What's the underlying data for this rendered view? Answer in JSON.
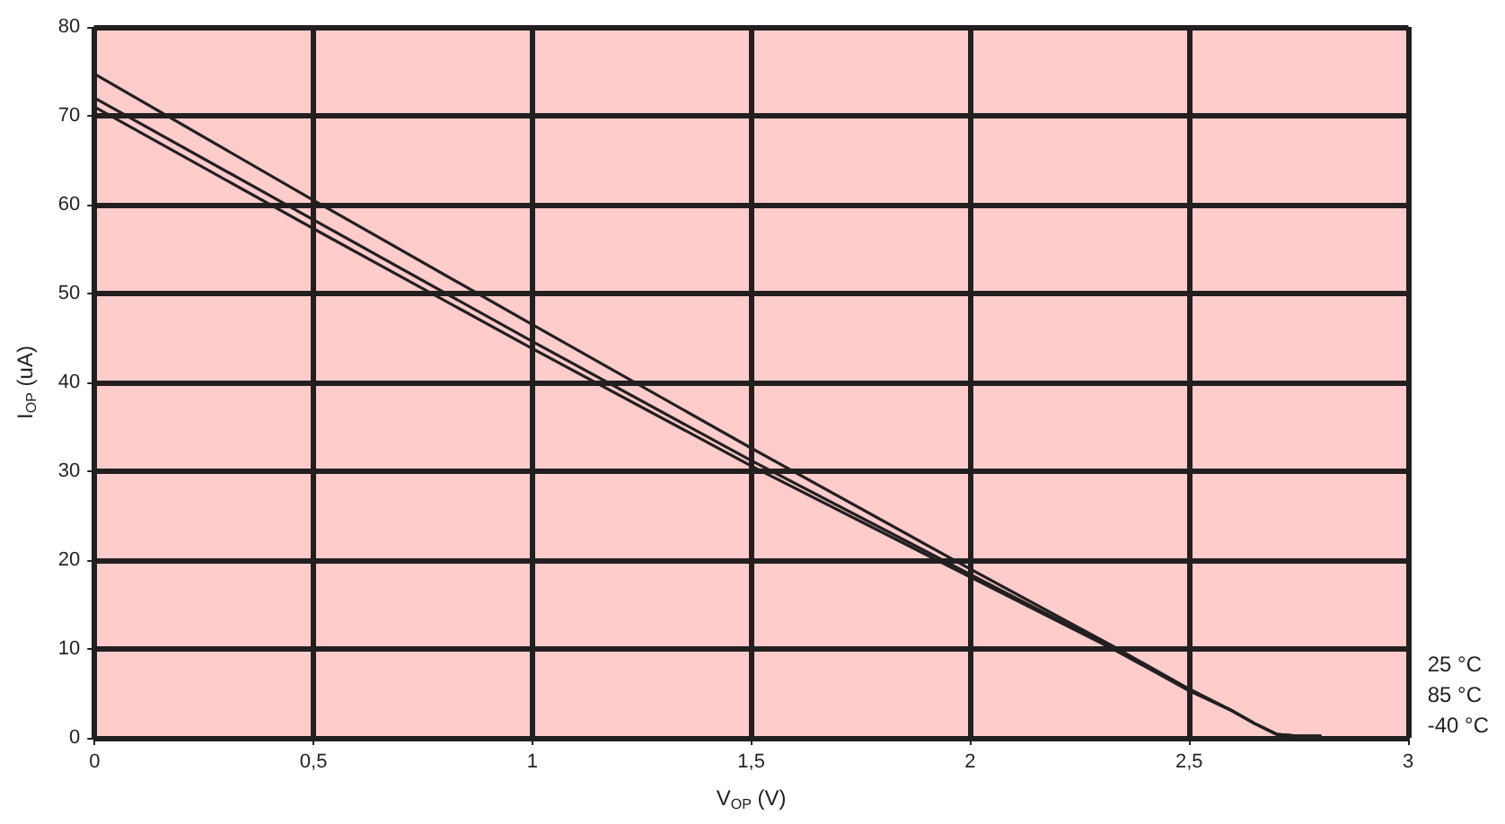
{
  "chart_data": {
    "type": "line",
    "xlabel": "V$_{OP}$ (V)",
    "ylabel": "I$_{OP}$ (uA)",
    "xlim": [
      0,
      3
    ],
    "xticks": [
      0,
      {
        "value": 0.5,
        "label": "0,5"
      },
      1,
      {
        "value": 1.5,
        "label": "1,5"
      },
      2,
      {
        "value": 2.5,
        "label": "2,5"
      },
      3
    ],
    "ylim": [
      0,
      80
    ],
    "yticks": [
      0,
      10,
      20,
      30,
      40,
      50,
      60,
      70,
      80
    ],
    "grid": true,
    "legend": "bottom right",
    "marker": "none",
    "line_style": "solid",
    "series": [
      {
        "name": "25 °C",
        "color": "#231f20",
        "x": [
          0,
          0.5,
          1,
          1.5,
          2,
          2.33,
          2.5,
          2.6,
          2.65,
          2.7,
          2.75,
          2.8
        ],
        "values": [
          74.7,
          60.5,
          46.5,
          32.6,
          19.0,
          10.2,
          5.5,
          3.0,
          1.6,
          0.4,
          0.2,
          0.2
        ]
      },
      {
        "name": "85 °C",
        "color": "#231f20",
        "x": [
          0,
          0.5,
          1,
          1.5,
          2,
          2.33,
          2.5,
          2.6,
          2.65,
          2.7,
          2.75,
          2.8
        ],
        "values": [
          72.0,
          58.3,
          44.6,
          31.2,
          18.4,
          10.0,
          5.4,
          3.0,
          1.6,
          0.4,
          0.2,
          0.2
        ]
      },
      {
        "name": "-40 °C",
        "color": "#231f20",
        "x": [
          0,
          0.5,
          1,
          1.5,
          2,
          2.33,
          2.5,
          2.6,
          2.65,
          2.7,
          2.75,
          2.8
        ],
        "values": [
          71.0,
          57.3,
          43.8,
          30.6,
          18.1,
          9.9,
          5.3,
          3.0,
          1.6,
          0.4,
          0.2,
          0.2
        ]
      }
    ]
  }
}
